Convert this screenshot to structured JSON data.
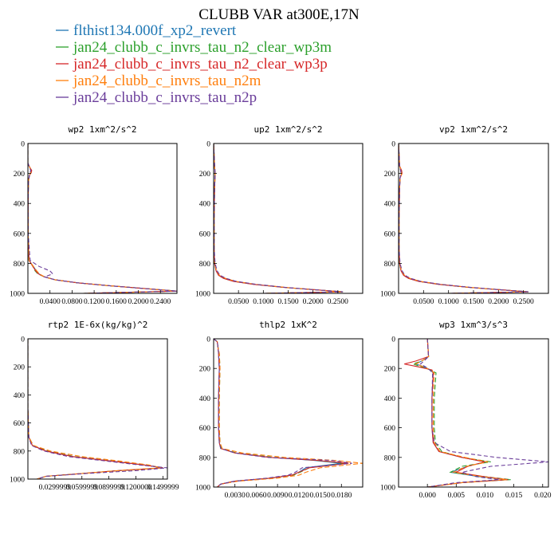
{
  "title": "CLUBB VAR at300E,17N",
  "legend": [
    {
      "label": "flthist134.000f_xp2_revert",
      "color": "#1f77b4"
    },
    {
      "label": "jan24_clubb_c_invrs_tau_n2_clear_wp3m",
      "color": "#2ca02c"
    },
    {
      "label": "jan24_clubb_c_invrs_tau_n2_clear_wp3p",
      "color": "#d62728"
    },
    {
      "label": "jan24_clubb_c_invrs_tau_n2m",
      "color": "#ff7f0e"
    },
    {
      "label": "jan24_clubb_c_invrs_tau_n2p",
      "color": "#6a3d9a"
    }
  ],
  "chart_data": [
    {
      "type": "line",
      "title": "wp2  1xm^2/s^2",
      "xlim": [
        0,
        0.27
      ],
      "ylim": [
        1000,
        0
      ],
      "xticks": [
        0.04,
        0.08,
        0.12,
        0.16,
        0.2,
        0.24
      ],
      "xtick_labels": [
        "0.0400",
        "0.0800",
        "0.1200",
        "0.1600",
        "0.2000",
        "0.2400"
      ],
      "yticks": [
        0,
        200,
        400,
        600,
        800,
        1000
      ],
      "y": [
        0,
        130,
        150,
        180,
        195,
        210,
        250,
        400,
        600,
        780,
        820,
        850,
        870,
        890,
        910,
        930,
        950,
        970,
        985,
        1000
      ],
      "series": [
        {
          "values": [
            0,
            0,
            0.002,
            0.006,
            0.005,
            0.003,
            0.001,
            0.0005,
            0.0005,
            0.002,
            0.01,
            0.015,
            0.02,
            0.03,
            0.05,
            0.09,
            0.15,
            0.22,
            0.27,
            0.1
          ]
        },
        {
          "values": [
            0,
            0,
            0.002,
            0.006,
            0.005,
            0.003,
            0.001,
            0.0005,
            0.0005,
            0.002,
            0.009,
            0.013,
            0.018,
            0.03,
            0.05,
            0.09,
            0.15,
            0.22,
            0.27,
            0.1
          ]
        },
        {
          "values": [
            0,
            0,
            0.002,
            0.007,
            0.006,
            0.003,
            0.001,
            0.0005,
            0.0005,
            0.002,
            0.009,
            0.014,
            0.019,
            0.03,
            0.05,
            0.09,
            0.15,
            0.22,
            0.27,
            0.1
          ]
        },
        {
          "values": [
            0,
            0,
            0.002,
            0.006,
            0.005,
            0.003,
            0.001,
            0.0005,
            0.0005,
            0.002,
            0.01,
            0.016,
            0.021,
            0.03,
            0.05,
            0.09,
            0.15,
            0.22,
            0.27,
            0.1
          ]
        },
        {
          "values": [
            0,
            0,
            0.002,
            0.005,
            0.004,
            0.003,
            0.001,
            0.0005,
            0.0005,
            0.004,
            0.02,
            0.04,
            0.045,
            0.03,
            0.05,
            0.09,
            0.15,
            0.22,
            0.27,
            0.1
          ]
        }
      ]
    },
    {
      "type": "line",
      "title": "up2  1xm^2/s^2",
      "xlim": [
        0,
        0.3
      ],
      "ylim": [
        1000,
        0
      ],
      "xticks": [
        0.05,
        0.1,
        0.15,
        0.2,
        0.25
      ],
      "xtick_labels": [
        "0.0500",
        "0.1000",
        "0.1500",
        "0.2000",
        "0.2500"
      ],
      "yticks": [
        0,
        200,
        400,
        600,
        800,
        1000
      ],
      "y": [
        0,
        150,
        200,
        300,
        500,
        700,
        800,
        850,
        880,
        900,
        920,
        940,
        960,
        975,
        990,
        1000
      ],
      "series": [
        {
          "values": [
            0,
            0.002,
            0.003,
            0.002,
            0.001,
            0.001,
            0.002,
            0.005,
            0.01,
            0.02,
            0.04,
            0.08,
            0.14,
            0.2,
            0.26,
            0.1
          ]
        },
        {
          "values": [
            0,
            0.002,
            0.003,
            0.002,
            0.001,
            0.001,
            0.002,
            0.005,
            0.011,
            0.022,
            0.043,
            0.083,
            0.14,
            0.2,
            0.26,
            0.1
          ]
        },
        {
          "values": [
            0,
            0.002,
            0.003,
            0.002,
            0.001,
            0.001,
            0.002,
            0.005,
            0.01,
            0.02,
            0.04,
            0.08,
            0.14,
            0.2,
            0.26,
            0.1
          ]
        },
        {
          "values": [
            0,
            0.002,
            0.003,
            0.002,
            0.001,
            0.001,
            0.002,
            0.006,
            0.012,
            0.024,
            0.045,
            0.085,
            0.145,
            0.2,
            0.26,
            0.1
          ]
        },
        {
          "values": [
            0,
            0.002,
            0.003,
            0.002,
            0.001,
            0.001,
            0.003,
            0.007,
            0.013,
            0.025,
            0.046,
            0.086,
            0.145,
            0.2,
            0.26,
            0.1
          ]
        }
      ]
    },
    {
      "type": "line",
      "title": "vp2  1xm^2/s^2",
      "xlim": [
        0,
        0.3
      ],
      "ylim": [
        1000,
        0
      ],
      "xticks": [
        0.05,
        0.1,
        0.15,
        0.2,
        0.25
      ],
      "xtick_labels": [
        "0.0500",
        "0.1000",
        "0.1500",
        "0.2000",
        "0.2500"
      ],
      "yticks": [
        0,
        200,
        400,
        600,
        800,
        1000
      ],
      "y": [
        0,
        150,
        180,
        200,
        230,
        300,
        500,
        700,
        800,
        850,
        880,
        900,
        920,
        940,
        960,
        975,
        990,
        1000
      ],
      "series": [
        {
          "values": [
            0,
            0.002,
            0.005,
            0.006,
            0.003,
            0.002,
            0.001,
            0.001,
            0.002,
            0.005,
            0.01,
            0.02,
            0.04,
            0.08,
            0.14,
            0.2,
            0.26,
            0.1
          ]
        },
        {
          "values": [
            0,
            0.002,
            0.005,
            0.006,
            0.003,
            0.002,
            0.001,
            0.001,
            0.002,
            0.005,
            0.011,
            0.021,
            0.042,
            0.082,
            0.14,
            0.2,
            0.26,
            0.1
          ]
        },
        {
          "values": [
            0,
            0.002,
            0.006,
            0.007,
            0.003,
            0.002,
            0.001,
            0.001,
            0.002,
            0.005,
            0.01,
            0.02,
            0.04,
            0.08,
            0.14,
            0.2,
            0.26,
            0.1
          ]
        },
        {
          "values": [
            0,
            0.002,
            0.005,
            0.006,
            0.003,
            0.002,
            0.001,
            0.001,
            0.002,
            0.006,
            0.012,
            0.023,
            0.044,
            0.084,
            0.144,
            0.2,
            0.26,
            0.1
          ]
        },
        {
          "values": [
            0,
            0.002,
            0.004,
            0.005,
            0.003,
            0.002,
            0.001,
            0.001,
            0.003,
            0.007,
            0.013,
            0.024,
            0.045,
            0.085,
            0.145,
            0.2,
            0.26,
            0.1
          ]
        }
      ]
    },
    {
      "type": "line",
      "title": "rtp2  1E-6x(kg/kg)^2",
      "xlim": [
        0,
        0.155
      ],
      "ylim": [
        1000,
        0
      ],
      "xticks": [
        0.03,
        0.06,
        0.09,
        0.12,
        0.15
      ],
      "xtick_labels": [
        "0.0299999",
        "0.0599999",
        "0.0899999",
        "0.1200000",
        "0.1499999"
      ],
      "yticks": [
        0,
        200,
        400,
        600,
        800,
        1000
      ],
      "y": [
        0,
        500,
        700,
        760,
        800,
        840,
        870,
        900,
        920,
        940,
        960,
        980,
        1000
      ],
      "series": [
        {
          "values": [
            0,
            0,
            0.001,
            0.005,
            0.02,
            0.05,
            0.09,
            0.13,
            0.15,
            0.1,
            0.06,
            0.02,
            0.01
          ]
        },
        {
          "values": [
            0,
            0,
            0.001,
            0.006,
            0.022,
            0.052,
            0.092,
            0.132,
            0.15,
            0.1,
            0.06,
            0.02,
            0.01
          ]
        },
        {
          "values": [
            0,
            0,
            0.001,
            0.005,
            0.02,
            0.05,
            0.09,
            0.13,
            0.15,
            0.1,
            0.06,
            0.02,
            0.01
          ]
        },
        {
          "values": [
            0,
            0,
            0.001,
            0.006,
            0.025,
            0.06,
            0.1,
            0.135,
            0.148,
            0.1,
            0.06,
            0.02,
            0.01
          ]
        },
        {
          "values": [
            0,
            0,
            0.001,
            0.004,
            0.018,
            0.045,
            0.085,
            0.125,
            0.155,
            0.12,
            0.065,
            0.02,
            0.01
          ]
        }
      ]
    },
    {
      "type": "line",
      "title": "thlp2  1xK^2",
      "xlim": [
        0,
        0.021
      ],
      "ylim": [
        1000,
        0
      ],
      "xticks": [
        0.003,
        0.006,
        0.009,
        0.012,
        0.015,
        0.018
      ],
      "xtick_labels": [
        "0.0030",
        "0.0060",
        "0.0090",
        "0.0120",
        "0.0150",
        "0.0180"
      ],
      "yticks": [
        0,
        200,
        400,
        600,
        800,
        1000
      ],
      "y": [
        0,
        20,
        50,
        100,
        200,
        400,
        600,
        700,
        740,
        770,
        800,
        820,
        840,
        870,
        900,
        920,
        940,
        960,
        980,
        1000
      ],
      "series": [
        {
          "values": [
            0,
            0.0005,
            0.0006,
            0.0007,
            0.0008,
            0.0007,
            0.0007,
            0.0008,
            0.001,
            0.003,
            0.008,
            0.014,
            0.018,
            0.013,
            0.012,
            0.011,
            0.008,
            0.003,
            0.001,
            0.0005
          ]
        },
        {
          "values": [
            0,
            0.0005,
            0.0006,
            0.0008,
            0.0009,
            0.0008,
            0.0008,
            0.0009,
            0.0011,
            0.0032,
            0.0085,
            0.0145,
            0.0185,
            0.0135,
            0.0122,
            0.0112,
            0.0081,
            0.003,
            0.001,
            0.0005
          ]
        },
        {
          "values": [
            0,
            0.0005,
            0.0006,
            0.0007,
            0.0008,
            0.0007,
            0.0007,
            0.0008,
            0.001,
            0.003,
            0.008,
            0.0145,
            0.019,
            0.0135,
            0.012,
            0.011,
            0.008,
            0.003,
            0.001,
            0.0005
          ]
        },
        {
          "values": [
            0,
            0.0005,
            0.0006,
            0.0008,
            0.0009,
            0.0008,
            0.0008,
            0.0009,
            0.0012,
            0.004,
            0.01,
            0.017,
            0.021,
            0.015,
            0.013,
            0.012,
            0.009,
            0.0035,
            0.001,
            0.0005
          ]
        },
        {
          "values": [
            0,
            0.0005,
            0.0006,
            0.0007,
            0.0008,
            0.0007,
            0.0007,
            0.0008,
            0.001,
            0.003,
            0.0075,
            0.0165,
            0.0195,
            0.0125,
            0.0115,
            0.0105,
            0.0075,
            0.003,
            0.001,
            0.0005
          ]
        }
      ]
    },
    {
      "type": "line",
      "title": "wp3  1xm^3/s^3",
      "xlim": [
        -0.005,
        0.021
      ],
      "ylim": [
        1000,
        0
      ],
      "xticks": [
        0,
        0.005,
        0.01,
        0.015,
        0.02
      ],
      "xtick_labels": [
        "0.000",
        "0.005",
        "0.010",
        "0.015",
        "0.020"
      ],
      "yticks": [
        0,
        200,
        400,
        600,
        800,
        1000
      ],
      "y": [
        0,
        120,
        150,
        170,
        190,
        210,
        230,
        400,
        600,
        700,
        760,
        800,
        830,
        860,
        900,
        930,
        950,
        970,
        1000
      ],
      "series": [
        {
          "values": [
            0,
            0.0002,
            -0.001,
            -0.002,
            -0.0005,
            0.0005,
            0.001,
            0.0008,
            0.0008,
            0.001,
            0.002,
            0.006,
            0.01,
            0.007,
            0.004,
            0.009,
            0.014,
            0.006,
            0.0
          ]
        },
        {
          "values": [
            0,
            0.0002,
            -0.001,
            -0.0025,
            -0.001,
            0.0005,
            0.0015,
            0.0012,
            0.0012,
            0.0014,
            0.0025,
            0.006,
            0.011,
            0.006,
            0.004,
            0.01,
            0.0145,
            0.006,
            0.0
          ]
        },
        {
          "values": [
            0,
            0.0002,
            -0.002,
            -0.004,
            -0.0015,
            0.0008,
            0.001,
            0.0008,
            0.0008,
            0.001,
            0.002,
            0.006,
            0.01,
            0.007,
            0.005,
            0.01,
            0.014,
            0.006,
            0.0
          ]
        },
        {
          "values": [
            0,
            0.0002,
            -0.001,
            -0.002,
            -0.0006,
            0.0005,
            0.0012,
            0.001,
            0.001,
            0.0012,
            0.0022,
            0.0065,
            0.0105,
            0.0068,
            0.0045,
            0.0095,
            0.0138,
            0.006,
            0.0
          ]
        },
        {
          "values": [
            0,
            0.0002,
            -0.0006,
            -0.0012,
            -0.0003,
            0.0004,
            0.0009,
            0.0008,
            0.0008,
            0.0012,
            0.004,
            0.012,
            0.021,
            0.011,
            0.006,
            0.0085,
            0.0125,
            0.005,
            0.0
          ]
        }
      ]
    }
  ]
}
